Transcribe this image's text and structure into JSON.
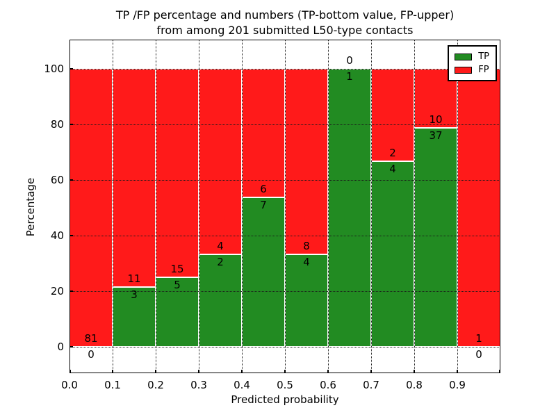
{
  "figure": {
    "title_line1": "TP /FP percentage and numbers (TP-bottom value, FP-upper)",
    "title_line2": "from among 201 submitted L50-type contacts",
    "background": "#ffffff"
  },
  "axes": {
    "xlabel": "Predicted probability",
    "ylabel": "Percentage",
    "yticks": [
      0,
      20,
      40,
      60,
      80,
      100
    ],
    "xticks": [
      "0.0",
      "0.1",
      "0.2",
      "0.3",
      "0.4",
      "0.5",
      "0.6",
      "0.7",
      "0.8",
      "0.9"
    ],
    "xlim": [
      0.0,
      1.0
    ],
    "ylim": [
      -10,
      110
    ],
    "grid_style": "dotted",
    "grid_color": "#1a1a1a"
  },
  "legend": {
    "position": "upper-right",
    "entries": [
      {
        "label": "TP",
        "color": "#228b22"
      },
      {
        "label": "FP",
        "color": "#ff1a1a"
      }
    ]
  },
  "chart_data": {
    "type": "bar",
    "stacked": true,
    "normalization": "each 0.1-wide probability bin stacked to 100%",
    "bin_width": 0.1,
    "categories": [
      "0.0-0.1",
      "0.1-0.2",
      "0.2-0.3",
      "0.3-0.4",
      "0.4-0.5",
      "0.5-0.6",
      "0.6-0.7",
      "0.7-0.8",
      "0.8-0.9",
      "0.9-1.0"
    ],
    "series": [
      {
        "name": "TP",
        "color": "#228b22",
        "counts": [
          0,
          3,
          5,
          2,
          7,
          4,
          1,
          4,
          37,
          0
        ]
      },
      {
        "name": "FP",
        "color": "#ff1a1a",
        "counts": [
          81,
          11,
          15,
          4,
          6,
          8,
          0,
          2,
          10,
          1
        ]
      }
    ],
    "tp_percent_of_bin": [
      0.0,
      21.4,
      25.0,
      33.3,
      53.8,
      33.3,
      100.0,
      66.7,
      78.7,
      0.0
    ],
    "total_contacts": 201,
    "title": "TP /FP percentage and numbers (TP-bottom value, FP-upper) from among 201 submitted L50-type contacts",
    "xlabel": "Predicted probability",
    "ylabel": "Percentage"
  }
}
